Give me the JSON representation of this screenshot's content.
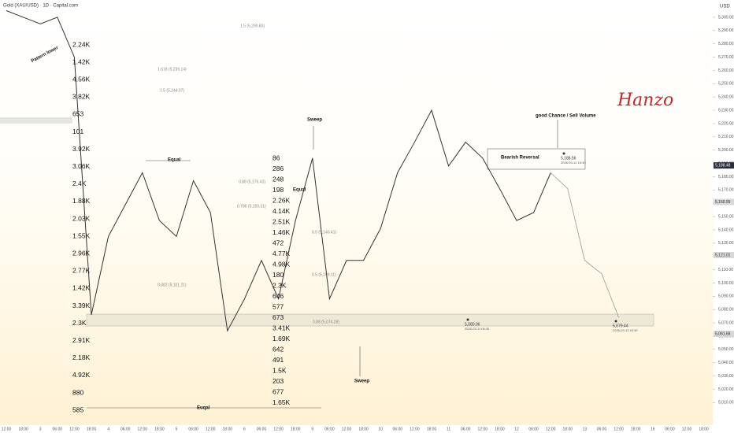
{
  "chart_data": {
    "type": "line",
    "title": "Gold (XAU/USD) · 1D · Capital.com",
    "currency": "USD",
    "signature": "Hanzo",
    "categories": [
      "12:00",
      "18:00",
      "3",
      "06:00",
      "12:00",
      "18:00",
      "4",
      "06:00",
      "12:00",
      "18:00",
      "5",
      "06:00",
      "12:00",
      "18:00",
      "6",
      "06:00",
      "12:00",
      "18:00",
      "9",
      "06:00",
      "12:00",
      "18:00",
      "10",
      "06:00",
      "12:00",
      "18:00",
      "11",
      "06:00",
      "12:00",
      "18:00",
      "12",
      "06:00",
      "12:00",
      "18:00",
      "13",
      "06:00",
      "12:00",
      "18:00",
      "16",
      "06:00",
      "12:00",
      "18:00"
    ],
    "series": [
      {
        "color": "#333333",
        "values": [
          5305,
          5300,
          5295,
          5300,
          5270,
          5076,
          5135,
          5159,
          5183,
          5147,
          5135,
          5177,
          5153,
          5064,
          5088,
          5117,
          5088,
          5147,
          5194,
          5088,
          5117,
          5117,
          5141,
          5183,
          5206,
          5230,
          5188,
          5206,
          5194,
          5171,
          5147,
          5153,
          5183,
          null,
          null,
          null,
          null,
          null,
          null,
          null,
          null,
          null
        ]
      },
      {
        "color": "#9a9a9a",
        "values": [
          null,
          null,
          null,
          null,
          null,
          null,
          null,
          null,
          null,
          null,
          null,
          null,
          null,
          null,
          null,
          null,
          null,
          null,
          null,
          null,
          null,
          null,
          null,
          null,
          null,
          null,
          null,
          null,
          null,
          null,
          null,
          null,
          5183,
          5171,
          5117,
          5107,
          5074,
          null,
          null,
          null,
          null,
          null
        ]
      }
    ],
    "ylim": [
      4993,
      5313
    ],
    "yticks": [
      {
        "value": 5010,
        "label": "5,010.00"
      },
      {
        "value": 5020,
        "label": "5,020.00"
      },
      {
        "value": 5030,
        "label": "5,030.00"
      },
      {
        "value": 5040,
        "label": "5,040.00"
      },
      {
        "value": 5050,
        "label": "5,050.00"
      },
      {
        "value": 5060,
        "label": "5,060.00"
      },
      {
        "value": 5070,
        "label": "5,070.00"
      },
      {
        "value": 5080,
        "label": "5,080.00"
      },
      {
        "value": 5090,
        "label": "5,090.00"
      },
      {
        "value": 5100,
        "label": "5,100.00"
      },
      {
        "value": 5110,
        "label": "5,110.00"
      },
      {
        "value": 5120,
        "label": "5,120.00"
      },
      {
        "value": 5130,
        "label": "5,130.00"
      },
      {
        "value": 5140,
        "label": "5,140.00"
      },
      {
        "value": 5150,
        "label": "5,150.00"
      },
      {
        "value": 5160,
        "label": "5,160.00"
      },
      {
        "value": 5170,
        "label": "5,170.00"
      },
      {
        "value": 5180,
        "label": "5,180.00"
      },
      {
        "value": 5190,
        "label": "5,190.00"
      },
      {
        "value": 5200,
        "label": "5,200.00"
      },
      {
        "value": 5210,
        "label": "5,210.00"
      },
      {
        "value": 5220,
        "label": "5,220.00"
      },
      {
        "value": 5230,
        "label": "5,230.00"
      },
      {
        "value": 5240,
        "label": "5,240.00"
      },
      {
        "value": 5250,
        "label": "5,250.00"
      },
      {
        "value": 5260,
        "label": "5,260.00"
      },
      {
        "value": 5270,
        "label": "5,270.00"
      },
      {
        "value": 5280,
        "label": "5,280.00"
      },
      {
        "value": 5290,
        "label": "5,290.00"
      },
      {
        "value": 5300,
        "label": "5,300.00"
      }
    ],
    "price_labels": [
      {
        "value": 5188.48,
        "label": "5,188.48",
        "color": "#2a2e39"
      },
      {
        "value": 5160.99,
        "label": "5,160.99",
        "color": "#d8d8d8"
      },
      {
        "value": 5121.01,
        "label": "5,121.01",
        "color": "#d8d8d8"
      },
      {
        "value": 5061.68,
        "label": "5,061.68",
        "color": "#d8d8d8"
      }
    ],
    "annotations": [
      "Equal",
      "Equal",
      "Euqal",
      "Sweep",
      "Sweep",
      "Pattern lower",
      "good Chance / Sell Volume",
      "Bearish Reversal",
      "1.5 (5,290.83)",
      "1.618 (5,239.14)",
      "1.5 (5,244.07)",
      "0.88 (5,176.43)",
      "0.786 (5,159.31)",
      "0.5 (5,140.41)",
      "0.5 (5,109.11)",
      "0.382 (5,101.21)",
      "0.88 (5,074.28)"
    ],
    "point_labels": [
      {
        "price": "5,188.56",
        "date": "2026-03-12 15:30"
      },
      {
        "price": "5,080.06",
        "date": "2026-03-11 06:30"
      },
      {
        "price": "5,079.44",
        "date": "2026-03-13 10:30"
      }
    ],
    "volume_profile_left": [
      "2.24K",
      "1.42K",
      "4.56K",
      "3.82K",
      "653",
      "101",
      "3.92K",
      "3.06K",
      "2.4K",
      "1.88K",
      "2.03K",
      "1.55K",
      "2.96K",
      "2.77K",
      "1.42K",
      "3.39K",
      "2.3K",
      "2.91K",
      "2.18K",
      "4.92K",
      "880",
      "585"
    ],
    "volume_profile_middle": [
      "86",
      "286",
      "248",
      "198",
      "2.26K",
      "4.14K",
      "2.51K",
      "1.46K",
      "472",
      "4.77K",
      "4.98K",
      "180",
      "2.3K",
      "646",
      "577",
      "673",
      "3.41K",
      "1.69K",
      "642",
      "491",
      "1.5K",
      "203",
      "677",
      "1.65K"
    ]
  }
}
